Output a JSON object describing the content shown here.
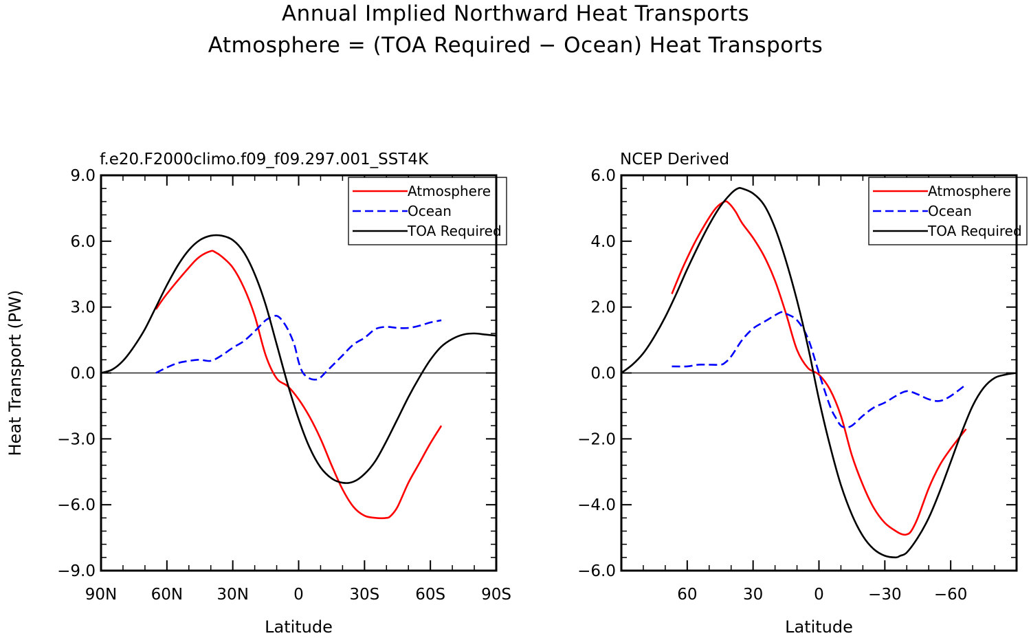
{
  "page_title_line1": "Annual Implied Northward Heat Transports",
  "page_title_line2": "Atmosphere = (TOA Required − Ocean) Heat Transports",
  "chart_data": [
    {
      "type": "line",
      "title": "f.e20.F2000climo.f09_f09.297.001_SST4K",
      "xlabel": "Latitude",
      "ylabel": "Heat Transport (PW)",
      "xlim": [
        90,
        -90
      ],
      "ylim": [
        -9,
        9
      ],
      "xticks": [
        90,
        60,
        30,
        0,
        -30,
        -60,
        -90
      ],
      "xtick_labels": [
        "90N",
        "60N",
        "30N",
        "0",
        "30S",
        "60S",
        "90S"
      ],
      "yticks": [
        -9,
        -6,
        -3,
        0,
        3,
        6,
        9
      ],
      "ytick_labels": [
        "−9.0",
        "−6.0",
        "−3.0",
        "0.0",
        "3.0",
        "6.0",
        "9.0"
      ],
      "legend": {
        "position": "top-right",
        "entries": [
          "Atmosphere",
          "Ocean",
          "TOA Required"
        ]
      },
      "series": [
        {
          "name": "Atmosphere",
          "color": "#ff0000",
          "dash": "solid",
          "x": [
            65,
            60,
            50,
            45,
            40,
            38,
            35,
            30,
            25,
            20,
            15,
            10,
            5,
            0,
            -5,
            -10,
            -15,
            -20,
            -25,
            -30,
            -35,
            -40,
            -42,
            -45,
            -50,
            -55,
            -60,
            -65
          ],
          "y": [
            2.9,
            3.6,
            4.8,
            5.3,
            5.55,
            5.5,
            5.3,
            4.8,
            3.9,
            2.6,
            0.8,
            -0.25,
            -0.6,
            -1.2,
            -2.0,
            -3.0,
            -4.2,
            -5.3,
            -6.1,
            -6.5,
            -6.6,
            -6.6,
            -6.5,
            -6.1,
            -5.0,
            -4.1,
            -3.2,
            -2.4
          ]
        },
        {
          "name": "Ocean",
          "color": "#0000ff",
          "dash": "dashed",
          "x": [
            65,
            60,
            55,
            50,
            45,
            40,
            35,
            30,
            25,
            20,
            15,
            12,
            10,
            8,
            5,
            2,
            0,
            -2,
            -5,
            -8,
            -10,
            -12,
            -15,
            -20,
            -25,
            -30,
            -35,
            -40,
            -45,
            -50,
            -55,
            -60,
            -65
          ],
          "y": [
            0.0,
            0.25,
            0.45,
            0.55,
            0.6,
            0.55,
            0.8,
            1.15,
            1.45,
            1.9,
            2.4,
            2.55,
            2.6,
            2.45,
            2.0,
            1.3,
            0.5,
            0.0,
            -0.25,
            -0.3,
            -0.2,
            0.0,
            0.3,
            0.8,
            1.3,
            1.6,
            2.0,
            2.1,
            2.05,
            2.05,
            2.15,
            2.3,
            2.4
          ]
        },
        {
          "name": "TOA Required",
          "color": "#000000",
          "dash": "solid",
          "x": [
            90,
            85,
            80,
            75,
            70,
            65,
            60,
            55,
            50,
            45,
            40,
            35,
            30,
            25,
            20,
            15,
            10,
            5,
            0,
            -5,
            -10,
            -15,
            -20,
            -25,
            -30,
            -35,
            -40,
            -45,
            -50,
            -55,
            -60,
            -65,
            -70,
            -75,
            -80,
            -85,
            -90
          ],
          "y": [
            0.0,
            0.15,
            0.55,
            1.2,
            2.0,
            3.0,
            4.0,
            4.9,
            5.6,
            6.05,
            6.25,
            6.25,
            6.05,
            5.5,
            4.5,
            3.1,
            1.3,
            -0.5,
            -2.1,
            -3.4,
            -4.3,
            -4.8,
            -5.0,
            -4.95,
            -4.6,
            -4.0,
            -3.1,
            -2.1,
            -1.1,
            -0.2,
            0.6,
            1.2,
            1.55,
            1.75,
            1.8,
            1.75,
            1.7
          ]
        }
      ]
    },
    {
      "type": "line",
      "title": "NCEP Derived",
      "xlabel": "Latitude",
      "ylabel": "",
      "xlim": [
        90,
        -90
      ],
      "ylim": [
        -6,
        6
      ],
      "xticks": [
        60,
        30,
        0,
        -30,
        -60
      ],
      "xtick_labels": [
        "60",
        "30",
        "0",
        "−30",
        "−60"
      ],
      "yticks": [
        -6,
        -4,
        -2,
        0,
        2,
        4,
        6
      ],
      "ytick_labels": [
        "−6.0",
        "−4.0",
        "−2.0",
        "0.0",
        "2.0",
        "4.0",
        "6.0"
      ],
      "legend": {
        "position": "top-right",
        "entries": [
          "Atmosphere",
          "Ocean",
          "TOA Required"
        ]
      },
      "series": [
        {
          "name": "Atmosphere",
          "color": "#ff0000",
          "dash": "solid",
          "x": [
            67,
            62,
            57,
            52,
            47,
            43,
            41,
            38,
            35,
            30,
            25,
            20,
            15,
            10,
            5,
            0,
            -5,
            -10,
            -15,
            -20,
            -25,
            -30,
            -35,
            -38,
            -40,
            -42,
            -45,
            -50,
            -55,
            -60,
            -67
          ],
          "y": [
            2.4,
            3.2,
            3.9,
            4.5,
            5.0,
            5.2,
            5.15,
            4.9,
            4.55,
            4.1,
            3.55,
            2.8,
            1.8,
            0.7,
            0.15,
            -0.05,
            -0.5,
            -1.3,
            -2.5,
            -3.4,
            -4.1,
            -4.55,
            -4.8,
            -4.9,
            -4.9,
            -4.8,
            -4.4,
            -3.5,
            -2.8,
            -2.3,
            -1.7
          ]
        },
        {
          "name": "Ocean",
          "color": "#0000ff",
          "dash": "dashed",
          "x": [
            67,
            60,
            55,
            50,
            45,
            43,
            40,
            35,
            30,
            25,
            20,
            17,
            15,
            10,
            5,
            0,
            -5,
            -8,
            -10,
            -12,
            -15,
            -20,
            -25,
            -30,
            -35,
            -40,
            -45,
            -50,
            -55,
            -60,
            -67
          ],
          "y": [
            0.2,
            0.2,
            0.25,
            0.25,
            0.25,
            0.3,
            0.5,
            1.0,
            1.35,
            1.55,
            1.75,
            1.85,
            1.8,
            1.6,
            1.05,
            0.0,
            -1.0,
            -1.4,
            -1.6,
            -1.65,
            -1.6,
            -1.3,
            -1.05,
            -0.9,
            -0.7,
            -0.55,
            -0.65,
            -0.8,
            -0.85,
            -0.7,
            -0.35
          ]
        },
        {
          "name": "TOA Required",
          "color": "#000000",
          "dash": "solid",
          "x": [
            90,
            85,
            80,
            75,
            70,
            65,
            60,
            55,
            50,
            45,
            40,
            37,
            35,
            30,
            25,
            20,
            15,
            10,
            5,
            0,
            -5,
            -10,
            -15,
            -20,
            -25,
            -30,
            -35,
            -37,
            -40,
            -45,
            -50,
            -55,
            -60,
            -65,
            -70,
            -75,
            -80,
            -85,
            -90
          ],
          "y": [
            0.0,
            0.25,
            0.6,
            1.1,
            1.7,
            2.4,
            3.15,
            3.85,
            4.5,
            5.05,
            5.45,
            5.6,
            5.6,
            5.45,
            5.1,
            4.4,
            3.4,
            2.2,
            0.8,
            -0.8,
            -2.2,
            -3.4,
            -4.3,
            -4.95,
            -5.35,
            -5.55,
            -5.6,
            -5.55,
            -5.45,
            -5.0,
            -4.4,
            -3.6,
            -2.7,
            -1.8,
            -1.0,
            -0.45,
            -0.15,
            -0.05,
            0.0
          ]
        }
      ]
    }
  ]
}
